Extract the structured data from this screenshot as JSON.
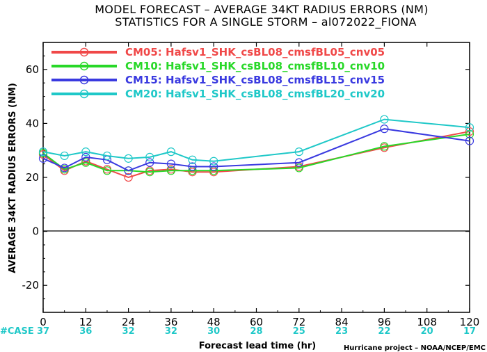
{
  "chart_data": {
    "type": "line",
    "title_line1": "MODEL FORECAST – AVERAGE 34KT RADIUS ERRORS (NM)",
    "title_line2": "STATISTICS FOR A SINGLE STORM – al072022_FIONA",
    "xlabel": "Forecast lead time (hr)",
    "ylabel": "AVERAGE 34KT RADIUS ERRORS (NM)",
    "xlim": [
      0,
      120
    ],
    "ylim": [
      -30,
      70
    ],
    "x_ticks": [
      0,
      12,
      24,
      36,
      48,
      60,
      72,
      84,
      96,
      108,
      120
    ],
    "y_ticks": [
      -20,
      0,
      20,
      40,
      60
    ],
    "x_tick_labels": [
      "0",
      "12",
      "24",
      "36",
      "48",
      "60",
      "72",
      "84",
      "96",
      "108",
      "120"
    ],
    "y_tick_labels": [
      "-20",
      "0",
      "20",
      "40",
      "60"
    ],
    "case_label": "#CASE",
    "case_counts": [
      "37",
      "36",
      "32",
      "32",
      "30",
      "28",
      "25",
      "23",
      "22",
      "20",
      "17"
    ],
    "case_color": "#1fc8c8",
    "credit": "Hurricane project – NOAA/NCEP/EMC",
    "legend_position": "top",
    "series": [
      {
        "name": "CM05: Hafsv1_SHK_csBL08_cmsfBL05_cnv05",
        "color": "#f04848",
        "x": [
          0,
          6,
          12,
          18,
          24,
          30,
          36,
          42,
          48,
          72,
          96,
          120
        ],
        "y": [
          28.5,
          22.5,
          26,
          23,
          20,
          22.5,
          23,
          22,
          22,
          24,
          31,
          37
        ]
      },
      {
        "name": "CM10: Hafsv1_SHK_csBL08_cmsfBL10_cnv10",
        "color": "#28d828",
        "x": [
          0,
          6,
          12,
          18,
          24,
          30,
          36,
          42,
          48,
          72,
          96,
          120
        ],
        "y": [
          29,
          23,
          25.5,
          22.5,
          22.5,
          22,
          22.5,
          22.5,
          22.5,
          23.5,
          31.5,
          36
        ]
      },
      {
        "name": "CM15: Hafsv1_SHK_csBL08_cmsfBL15_cnv15",
        "color": "#3a3ae0",
        "x": [
          0,
          6,
          12,
          18,
          24,
          30,
          36,
          42,
          48,
          72,
          96,
          120
        ],
        "y": [
          27,
          23.5,
          27.5,
          26.5,
          22.5,
          25.5,
          25,
          24,
          24,
          25.5,
          38,
          33.5
        ]
      },
      {
        "name": "CM20: Hafsv1_SHK_csBL08_cmsfBL20_cnv20",
        "color": "#1fc8c8",
        "x": [
          0,
          6,
          12,
          18,
          24,
          30,
          36,
          42,
          48,
          72,
          96,
          120
        ],
        "y": [
          29.5,
          28,
          29.5,
          28,
          27,
          27.5,
          29.5,
          26.5,
          26,
          29.5,
          41.5,
          38.5
        ]
      }
    ]
  }
}
